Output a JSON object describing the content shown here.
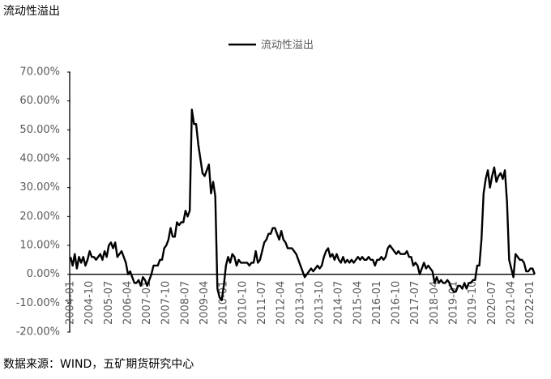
{
  "chart_data": {
    "type": "line",
    "title": "流动性溢出",
    "source": "数据来源：WIND，五矿期货研究中心",
    "categories": [
      "2004-01",
      null,
      null,
      null,
      null,
      null,
      null,
      null,
      null,
      "2004-10",
      null,
      null,
      null,
      null,
      null,
      null,
      null,
      null,
      "2005-07",
      null,
      null,
      null,
      null,
      null,
      null,
      null,
      null,
      "2006-04",
      null,
      null,
      null,
      null,
      null,
      null,
      null,
      null,
      "2007-01",
      null,
      null,
      null,
      null,
      null,
      null,
      null,
      null,
      "2007-10",
      null,
      null,
      null,
      null,
      null,
      null,
      null,
      null,
      "2008-07",
      null,
      null,
      null,
      null,
      null,
      null,
      null,
      null,
      "2009-04",
      null,
      null,
      null,
      null,
      null,
      null,
      null,
      null,
      "2010-01",
      null,
      null,
      null,
      null,
      null,
      null,
      null,
      null,
      "2010-10",
      null,
      null,
      null,
      null,
      null,
      null,
      null,
      null,
      "2011-07",
      null,
      null,
      null,
      null,
      null,
      null,
      null,
      null,
      "2012-04",
      null,
      null,
      null,
      null,
      null,
      null,
      null,
      null,
      "2013-01",
      null,
      null,
      null,
      null,
      null,
      null,
      null,
      null,
      "2013-10",
      null,
      null,
      null,
      null,
      null,
      null,
      null,
      null,
      "2014-07",
      null,
      null,
      null,
      null,
      null,
      null,
      null,
      null,
      "2015-04",
      null,
      null,
      null,
      null,
      null,
      null,
      null,
      null,
      "2016-01",
      null,
      null,
      null,
      null,
      null,
      null,
      null,
      null,
      "2016-10",
      null,
      null,
      null,
      null,
      null,
      null,
      null,
      null,
      "2017-07",
      null,
      null,
      null,
      null,
      null,
      null,
      null,
      null,
      "2018-04",
      null,
      null,
      null,
      null,
      null,
      null,
      null,
      null,
      "2019-01",
      null,
      null,
      null,
      null,
      null,
      null,
      null,
      null,
      "2019-10",
      null,
      null,
      null,
      null,
      null,
      null,
      null,
      null,
      "2020-07",
      null,
      null,
      null,
      null,
      null,
      null,
      null,
      null,
      "2021-04",
      null,
      null,
      null,
      null,
      null,
      null,
      null,
      null,
      "2022-01",
      null,
      null
    ],
    "series": [
      {
        "name": "流动性溢出",
        "color": "#000000",
        "values": [
          6,
          3,
          7,
          2,
          6,
          4,
          6,
          3,
          5,
          8,
          6,
          6,
          5,
          6,
          7,
          5,
          8,
          6,
          10,
          11,
          9,
          11,
          6,
          7,
          8,
          6,
          4,
          0,
          1,
          -1,
          -3,
          -3,
          -2,
          -4,
          -1,
          -2,
          -4,
          -2,
          0,
          3,
          3,
          3,
          5,
          5,
          9,
          10,
          12,
          16,
          13,
          13,
          18,
          17,
          18,
          18,
          22,
          20,
          22,
          57,
          52,
          52,
          45,
          40,
          35,
          34,
          36,
          38,
          28,
          32,
          27,
          -5,
          -8,
          -9,
          -4,
          3,
          6,
          4,
          7,
          6,
          3,
          5,
          4,
          4,
          4,
          4,
          3,
          4,
          4,
          8,
          4,
          5,
          8,
          11,
          12,
          14,
          14,
          16,
          16,
          14,
          12,
          15,
          12,
          11,
          9,
          9,
          9,
          8,
          7,
          5,
          3,
          1,
          -1,
          0,
          1,
          2,
          1,
          2,
          3,
          2,
          3,
          6,
          8,
          9,
          6,
          7,
          5,
          7,
          5,
          4,
          6,
          4,
          5,
          4,
          5,
          4,
          5,
          6,
          5,
          6,
          5,
          5,
          6,
          5,
          5,
          3,
          5,
          5,
          6,
          5,
          6,
          9,
          10,
          9,
          8,
          7,
          8,
          7,
          7,
          7,
          8,
          6,
          6,
          3,
          4,
          3,
          0,
          2,
          4,
          2,
          3,
          2,
          1,
          -3,
          -1,
          -3,
          -2,
          -3,
          -3,
          -2,
          -3,
          -5,
          -6,
          -6,
          -4,
          -4,
          -5,
          -3,
          -5,
          -3,
          -3,
          -2,
          -2,
          3,
          3,
          12,
          28,
          33,
          36,
          30,
          34,
          37,
          32,
          34,
          35,
          33,
          36,
          25,
          5,
          2,
          -1,
          7,
          6,
          5,
          5,
          4,
          1,
          1,
          2,
          2,
          0
        ]
      }
    ],
    "ylim": [
      -20,
      70
    ],
    "yticks": [
      {
        "value": -20,
        "label": "-20.00%"
      },
      {
        "value": -10,
        "label": "-10.00%"
      },
      {
        "value": 0,
        "label": "0.00%"
      },
      {
        "value": 10,
        "label": "10.00%"
      },
      {
        "value": 20,
        "label": "20.00%"
      },
      {
        "value": 30,
        "label": "30.00%"
      },
      {
        "value": 40,
        "label": "40.00%"
      },
      {
        "value": 50,
        "label": "50.00%"
      },
      {
        "value": 60,
        "label": "60.00%"
      },
      {
        "value": 70,
        "label": "70.00%"
      }
    ],
    "legend": "top"
  }
}
